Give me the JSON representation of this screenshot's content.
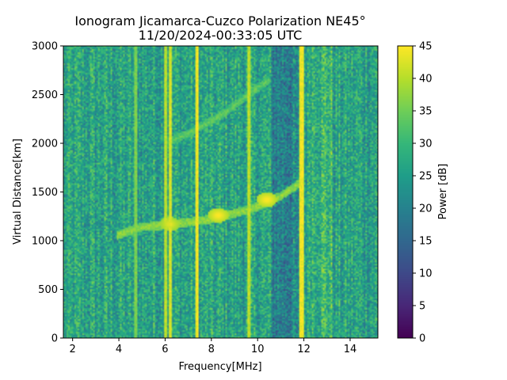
{
  "chart_data": {
    "type": "heatmap",
    "title_line1": "Ionogram Jicamarca-Cuzco Polarization NE45°",
    "title_line2": "11/20/2024-00:33:05 UTC",
    "xlabel": "Frequency[MHz]",
    "ylabel": "Virtual Distance[km]",
    "xlim": [
      1.6,
      15.2
    ],
    "ylim": [
      0,
      3000
    ],
    "x_ticks": [
      2,
      4,
      6,
      8,
      10,
      12,
      14
    ],
    "y_ticks": [
      0,
      500,
      1000,
      1500,
      2000,
      2500,
      3000
    ],
    "colorbar": {
      "label": "Power [dB]",
      "range": [
        0,
        45
      ],
      "ticks": [
        0,
        5,
        10,
        15,
        20,
        25,
        30,
        35,
        40,
        45
      ],
      "colormap": "viridis"
    },
    "background_power_db": 26,
    "vertical_interference_lines_mhz": [
      {
        "freq": 4.75,
        "power": 36
      },
      {
        "freq": 6.05,
        "power": 40
      },
      {
        "freq": 6.2,
        "power": 42
      },
      {
        "freq": 7.35,
        "power": 44
      },
      {
        "freq": 9.6,
        "power": 40
      },
      {
        "freq": 11.9,
        "power": 44
      }
    ],
    "traces": [
      {
        "name": "main-echo-trace",
        "power": 38,
        "points": [
          [
            3.9,
            1050
          ],
          [
            4.5,
            1100
          ],
          [
            5.0,
            1140
          ],
          [
            6.0,
            1160
          ],
          [
            7.0,
            1190
          ],
          [
            8.0,
            1220
          ],
          [
            9.0,
            1280
          ],
          [
            10.0,
            1350
          ],
          [
            11.0,
            1460
          ],
          [
            11.9,
            1600
          ]
        ]
      },
      {
        "name": "second-hop-trace",
        "power": 34,
        "points": [
          [
            6.0,
            2000
          ],
          [
            7.0,
            2100
          ],
          [
            8.0,
            2230
          ],
          [
            8.5,
            2300
          ],
          [
            9.5,
            2480
          ],
          [
            10.5,
            2650
          ]
        ]
      }
    ],
    "hotspots": [
      {
        "freq": 8.3,
        "dist": 1260,
        "power": 45
      },
      {
        "freq": 10.4,
        "dist": 1420,
        "power": 45
      },
      {
        "freq": 6.2,
        "dist": 1170,
        "power": 43
      }
    ]
  }
}
